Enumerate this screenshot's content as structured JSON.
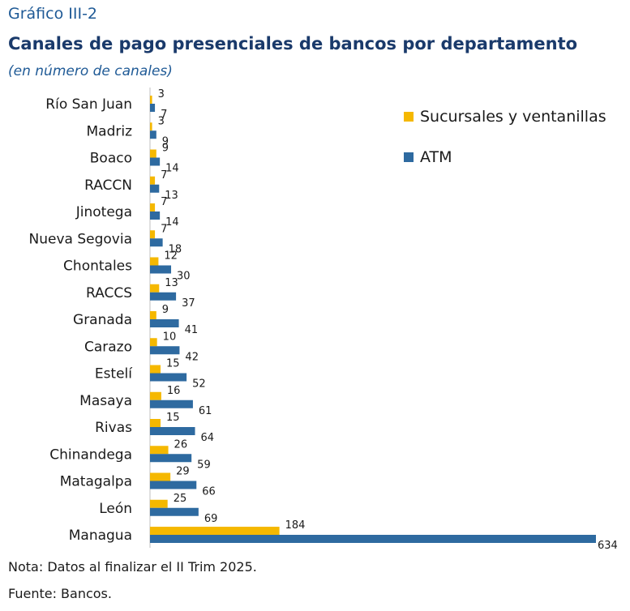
{
  "header": {
    "figure_number": "Gráfico III-2",
    "title": "Canales de pago presenciales de bancos por departamento",
    "subtitle": "(en número de canales)"
  },
  "footer": {
    "note": "Nota: Datos al finalizar el II Trim 2025.",
    "source": "Fuente: Bancos."
  },
  "colors": {
    "sucursales": "#f5b800",
    "atm": "#2e6aa0"
  },
  "chart_data": {
    "type": "bar",
    "orientation": "horizontal",
    "categories": [
      "Río San Juan",
      "Madriz",
      "Boaco",
      "RACCN",
      "Jinotega",
      "Nueva Segovia",
      "Chontales",
      "RACCS",
      "Granada",
      "Carazo",
      "Estelí",
      "Masaya",
      "Rivas",
      "Chinandega",
      "Matagalpa",
      "León",
      "Managua"
    ],
    "series": [
      {
        "name": "Sucursales y ventanillas",
        "color": "#f5b800",
        "values": [
          3,
          3,
          9,
          7,
          7,
          7,
          12,
          13,
          9,
          10,
          15,
          16,
          15,
          26,
          29,
          25,
          184
        ]
      },
      {
        "name": "ATM",
        "color": "#2e6aa0",
        "values": [
          7,
          9,
          14,
          13,
          14,
          18,
          30,
          37,
          41,
          42,
          52,
          61,
          64,
          59,
          66,
          69,
          634
        ]
      }
    ],
    "xlim": [
      0,
      634
    ],
    "grid": false,
    "legend_position": "top-right"
  }
}
